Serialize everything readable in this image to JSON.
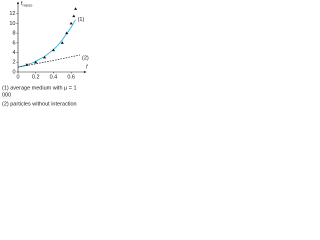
{
  "chart_data": {
    "type": "line",
    "y_label": {
      "main": "f",
      "sub": "meso"
    },
    "x_label": "f",
    "xlim": [
      0,
      0.7
    ],
    "ylim": [
      0,
      14
    ],
    "xticks": [
      0,
      0.2,
      0.4,
      0.6
    ],
    "yticks": [
      0,
      2,
      4,
      6,
      8,
      10,
      12
    ],
    "series": [
      {
        "name": "(1)",
        "color": "#33b5d6",
        "style": "solid",
        "x": [
          0,
          0.05,
          0.1,
          0.15,
          0.2,
          0.25,
          0.3,
          0.35,
          0.4,
          0.45,
          0.5,
          0.55,
          0.6,
          0.65
        ],
        "values": [
          1,
          1.2,
          1.5,
          1.8,
          2.2,
          2.7,
          3.2,
          3.9,
          4.6,
          5.5,
          6.6,
          7.9,
          9.2,
          10.8
        ]
      },
      {
        "name": "(2)",
        "color": "#222222",
        "style": "dashed",
        "x": [
          0,
          0.35,
          0.7
        ],
        "values": [
          1,
          2.2,
          3.5
        ]
      },
      {
        "color": "#111111",
        "style": "markers",
        "x": [
          0.1,
          0.2,
          0.3,
          0.4,
          0.5,
          0.55,
          0.6,
          0.63,
          0.65
        ],
        "values": [
          1.5,
          2,
          3,
          4.5,
          6,
          8,
          10,
          11.5,
          13
        ]
      }
    ],
    "notes": [
      "(1) average medium with μ = 1",
      "000",
      "(2) particles without interaction"
    ]
  }
}
